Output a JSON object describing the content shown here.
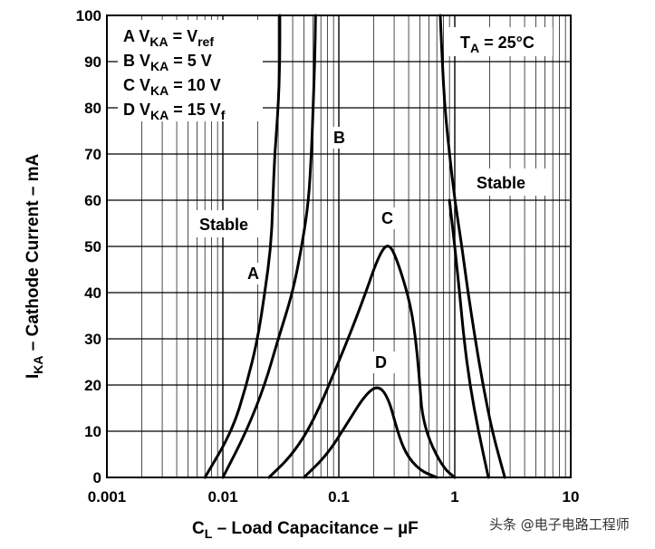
{
  "chart_data": {
    "type": "line",
    "xscale": "log",
    "xlim": [
      0.001,
      10
    ],
    "ylim": [
      0,
      100
    ],
    "x_ticks": [
      "0.001",
      "0.01",
      "0.1",
      "1",
      "10"
    ],
    "y_ticks": [
      "0",
      "10",
      "20",
      "30",
      "40",
      "50",
      "60",
      "70",
      "80",
      "90",
      "100"
    ],
    "xlabel": {
      "main": "C",
      "sub": "L",
      "rest": " – Load Capacitance – µF"
    },
    "ylabel": {
      "main": "I",
      "sub": "KA",
      "rest": " – Cathode Current – mA"
    },
    "condition": {
      "main": "T",
      "sub": "A",
      "rest": " = 25°C"
    },
    "legend": [
      {
        "letter": "A",
        "v": "V",
        "sub": "KA",
        "rest": " = V",
        "tail": "ref"
      },
      {
        "letter": "B",
        "v": "V",
        "sub": "KA",
        "rest": " = 5 V",
        "tail": ""
      },
      {
        "letter": "C",
        "v": "V",
        "sub": "KA",
        "rest": " = 10 V",
        "tail": ""
      },
      {
        "letter": "D",
        "v": "V",
        "sub": "KA",
        "rest": " = 15 V",
        "tail": "f"
      }
    ],
    "region_labels": [
      "Stable",
      "Stable"
    ],
    "curve_labels": [
      "A",
      "B",
      "C",
      "D"
    ],
    "series": [
      {
        "name": "A",
        "points": [
          [
            0.007,
            0
          ],
          [
            0.012,
            10
          ],
          [
            0.016,
            20
          ],
          [
            0.02,
            30
          ],
          [
            0.023,
            40
          ],
          [
            0.026,
            50
          ],
          [
            0.027,
            60
          ],
          [
            0.028,
            70
          ],
          [
            0.03,
            80
          ],
          [
            0.031,
            90
          ],
          [
            0.031,
            100
          ]
        ]
      },
      {
        "name": "B",
        "points": [
          [
            0.01,
            0
          ],
          [
            0.016,
            10
          ],
          [
            0.023,
            20
          ],
          [
            0.03,
            30
          ],
          [
            0.04,
            40
          ],
          [
            0.048,
            50
          ],
          [
            0.055,
            60
          ],
          [
            0.058,
            70
          ],
          [
            0.06,
            80
          ],
          [
            0.062,
            90
          ],
          [
            0.063,
            100
          ]
        ]
      },
      {
        "name": "B_right",
        "points": [
          [
            0.75,
            100
          ],
          [
            0.78,
            90
          ],
          [
            0.82,
            80
          ],
          [
            0.9,
            70
          ],
          [
            1.0,
            60
          ],
          [
            1.15,
            50
          ],
          [
            1.3,
            40
          ],
          [
            1.5,
            30
          ],
          [
            1.75,
            20
          ],
          [
            2.1,
            10
          ],
          [
            2.7,
            0
          ]
        ]
      },
      {
        "name": "C",
        "points": [
          [
            0.025,
            0
          ],
          [
            0.04,
            5
          ],
          [
            0.06,
            12
          ],
          [
            0.1,
            25
          ],
          [
            0.16,
            38
          ],
          [
            0.22,
            48
          ],
          [
            0.27,
            51
          ],
          [
            0.33,
            46
          ],
          [
            0.42,
            37
          ],
          [
            0.47,
            28
          ],
          [
            0.5,
            20
          ],
          [
            0.52,
            14
          ],
          [
            0.6,
            8
          ],
          [
            0.8,
            2
          ],
          [
            1.0,
            0
          ]
        ]
      },
      {
        "name": "C_right",
        "points": [
          [
            0.9,
            60
          ],
          [
            1.0,
            50
          ],
          [
            1.1,
            40
          ],
          [
            1.2,
            30
          ],
          [
            1.35,
            20
          ],
          [
            1.6,
            10
          ],
          [
            1.95,
            0
          ]
        ]
      },
      {
        "name": "D",
        "points": [
          [
            0.05,
            0
          ],
          [
            0.08,
            5
          ],
          [
            0.12,
            12
          ],
          [
            0.17,
            18
          ],
          [
            0.22,
            20
          ],
          [
            0.27,
            17
          ],
          [
            0.32,
            10
          ],
          [
            0.38,
            5
          ],
          [
            0.5,
            1.5
          ],
          [
            0.7,
            0
          ]
        ]
      }
    ]
  },
  "watermark": "头条 @电子电路工程师"
}
